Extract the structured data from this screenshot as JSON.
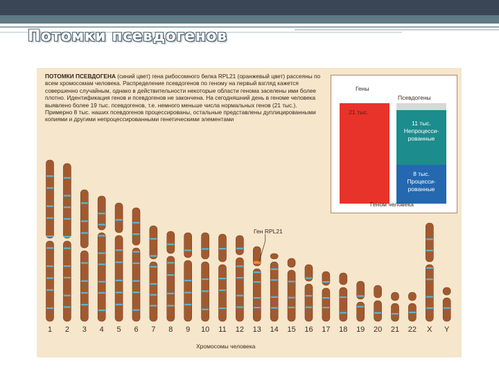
{
  "slide": {
    "title": "Потомки псевдогенов"
  },
  "caption": {
    "lead": "ПОТОМКИ ПСЕВДОГЕНА",
    "rest": " (синий цвет) гена рибосомного белка RPL21 (оранжевый цвет) рассеяны по всем хромосомам человека. Распределение псевдогенов по геному на первый взгляд кажется совершенно случайным, однако в действительности некоторые области генома заселены ими более плотно. Идентификация генов и псевдогенов не закончена. На сегодняшний день в геноме человека выявлено более 19 тыс. псевдогенов, т.е. немного меньше числа нормальных генов (21 тыс.). Примерно 8 тыс. наших псевдогенов процессированы, остальные представлены дуплицированными копиями и другими непроцессированными генетическими элементами"
  },
  "inset": {
    "genes_label": "Гены",
    "pseudo_label": "Псевдогены",
    "genes_count": "21 тыс.",
    "unprocessed_count": "11 тыс.",
    "unprocessed_label_1": "Непроцесси-",
    "unprocessed_label_2": "рованные",
    "processed_count": "8 тыс.",
    "processed_label_1": "Процесси-",
    "processed_label_2": "рованные",
    "footer": "Геном человека",
    "colors": {
      "genes": "#e8332a",
      "unprocessed": "#1c8c8c",
      "processed": "#2468b0"
    }
  },
  "chromosomes": {
    "labels": [
      "1",
      "2",
      "3",
      "4",
      "5",
      "6",
      "7",
      "8",
      "9",
      "10",
      "11",
      "12",
      "13",
      "14",
      "15",
      "16",
      "17",
      "18",
      "19",
      "20",
      "21",
      "22",
      "X",
      "Y"
    ],
    "gene_label": "Ген RPL21",
    "axis_title": "Хромосомы человека",
    "colors": {
      "body": "#a15a30",
      "pseudogene_band": "#5cb7d6",
      "gene_band": "#f28a2d"
    }
  }
}
